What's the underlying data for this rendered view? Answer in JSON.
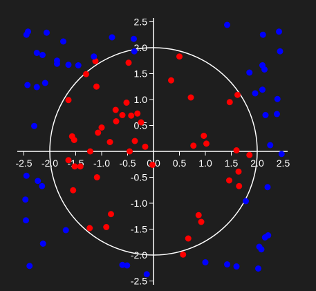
{
  "chart_data": {
    "type": "scatter",
    "title": "",
    "xlabel": "",
    "ylabel": "",
    "xlim": [
      -2.6,
      2.6
    ],
    "ylim": [
      -2.6,
      2.6
    ],
    "x_ticks": [
      -2.5,
      -2.0,
      -1.5,
      -1.0,
      -0.5,
      0.0,
      0.5,
      1.0,
      1.5,
      2.0,
      2.5
    ],
    "y_ticks": [
      -2.5,
      -2.0,
      -1.5,
      -1.0,
      -0.5,
      0.0,
      0.5,
      1.0,
      1.5,
      2.0,
      2.5
    ],
    "x_tick_labels": [
      "-2.5",
      "-2.0",
      "-1.5",
      "-1.0",
      "-0.5",
      "0.0",
      "0.5",
      "1.0",
      "1.5",
      "2.0",
      "2.5"
    ],
    "y_tick_labels": [
      "-2.5",
      "-2.0",
      "-1.5",
      "-1.0",
      "-0.5",
      "0.0",
      "0.5",
      "1.0",
      "1.5",
      "2.0",
      "2.5"
    ],
    "grid": false,
    "circle": {
      "center": [
        0,
        0
      ],
      "radius": 2.0,
      "color": "#ffffff"
    },
    "colors": {
      "background": "#1e1e1e",
      "inside": "#ff0000",
      "outside": "#0000ff",
      "axes": "#ffffff"
    },
    "series": [
      {
        "color": "#ff0000",
        "points": [
          [
            -1.3,
            1.49
          ],
          [
            -1.12,
            1.74
          ],
          [
            -1.1,
            1.25
          ],
          [
            -0.48,
            1.71
          ],
          [
            0.5,
            1.83
          ],
          [
            0.34,
            1.37
          ],
          [
            0.72,
            1.04
          ],
          [
            1.47,
            0.95
          ],
          [
            1.62,
            1.09
          ],
          [
            -1.64,
            0.99
          ],
          [
            -0.73,
            0.8
          ],
          [
            -0.52,
            0.94
          ],
          [
            -0.6,
            0.7
          ],
          [
            -0.43,
            0.69
          ],
          [
            -0.31,
            0.73
          ],
          [
            -0.24,
            0.56
          ],
          [
            -0.72,
            0.58
          ],
          [
            -1.0,
            0.46
          ],
          [
            -1.07,
            0.36
          ],
          [
            -0.84,
            0.18
          ],
          [
            -0.36,
            0.2
          ],
          [
            -0.16,
            0.09
          ],
          [
            -0.46,
            0.0
          ],
          [
            -1.57,
            0.29
          ],
          [
            -1.53,
            0.22
          ],
          [
            0.77,
            0.11
          ],
          [
            0.97,
            0.3
          ],
          [
            1.02,
            0.15
          ],
          [
            1.6,
            0.02
          ],
          [
            1.85,
            -0.07
          ],
          [
            -1.64,
            -0.17
          ],
          [
            -1.22,
            0.0
          ],
          [
            -1.52,
            -0.29
          ],
          [
            -1.41,
            -0.29
          ],
          [
            -0.02,
            -0.26
          ],
          [
            -1.55,
            -0.75
          ],
          [
            -1.09,
            -0.5
          ],
          [
            1.64,
            -0.39
          ],
          [
            1.46,
            -0.56
          ],
          [
            1.65,
            -0.67
          ],
          [
            -0.82,
            -1.21
          ],
          [
            -1.23,
            -1.48
          ],
          [
            -0.91,
            -1.46
          ],
          [
            0.87,
            -1.23
          ],
          [
            0.92,
            -1.36
          ],
          [
            0.67,
            -1.68
          ],
          [
            0.57,
            -1.99
          ]
        ]
      },
      {
        "color": "#0000ff",
        "points": [
          [
            -2.42,
            2.31
          ],
          [
            -2.45,
            2.25
          ],
          [
            -2.06,
            2.29
          ],
          [
            -1.74,
            2.12
          ],
          [
            -0.8,
            2.2
          ],
          [
            -0.38,
            2.17
          ],
          [
            1.42,
            2.44
          ],
          [
            2.11,
            2.25
          ],
          [
            2.42,
            2.31
          ],
          [
            -2.25,
            1.9
          ],
          [
            -2.14,
            1.86
          ],
          [
            -1.86,
            1.75
          ],
          [
            -1.86,
            1.69
          ],
          [
            -1.64,
            1.67
          ],
          [
            -1.45,
            1.66
          ],
          [
            -1.15,
            1.83
          ],
          [
            -0.37,
            1.93
          ],
          [
            2.44,
            1.93
          ],
          [
            2.1,
            1.66
          ],
          [
            2.14,
            1.58
          ],
          [
            1.85,
            1.52
          ],
          [
            -2.43,
            1.28
          ],
          [
            -2.25,
            1.24
          ],
          [
            -2.09,
            1.32
          ],
          [
            2.1,
            1.19
          ],
          [
            1.96,
            1.12
          ],
          [
            2.39,
            1.01
          ],
          [
            2.16,
            0.7
          ],
          [
            2.38,
            0.72
          ],
          [
            -2.3,
            0.49
          ],
          [
            2.25,
            0.12
          ],
          [
            2.47,
            -0.05
          ],
          [
            -2.45,
            -0.47
          ],
          [
            -2.23,
            -0.57
          ],
          [
            -2.15,
            -0.67
          ],
          [
            2.2,
            -0.69
          ],
          [
            -2.47,
            -0.93
          ],
          [
            1.78,
            -0.96
          ],
          [
            -2.46,
            -1.33
          ],
          [
            -1.69,
            -1.52
          ],
          [
            2.21,
            -1.62
          ],
          [
            2.15,
            -1.66
          ],
          [
            -2.13,
            -1.78
          ],
          [
            2.04,
            -1.84
          ],
          [
            2.08,
            -1.89
          ],
          [
            -0.6,
            -2.19
          ],
          [
            -0.51,
            -2.2
          ],
          [
            1.0,
            -2.14
          ],
          [
            1.42,
            -2.18
          ],
          [
            1.6,
            -2.22
          ],
          [
            2.02,
            -2.26
          ],
          [
            -2.39,
            -2.21
          ],
          [
            -0.13,
            -2.37
          ]
        ]
      }
    ]
  }
}
